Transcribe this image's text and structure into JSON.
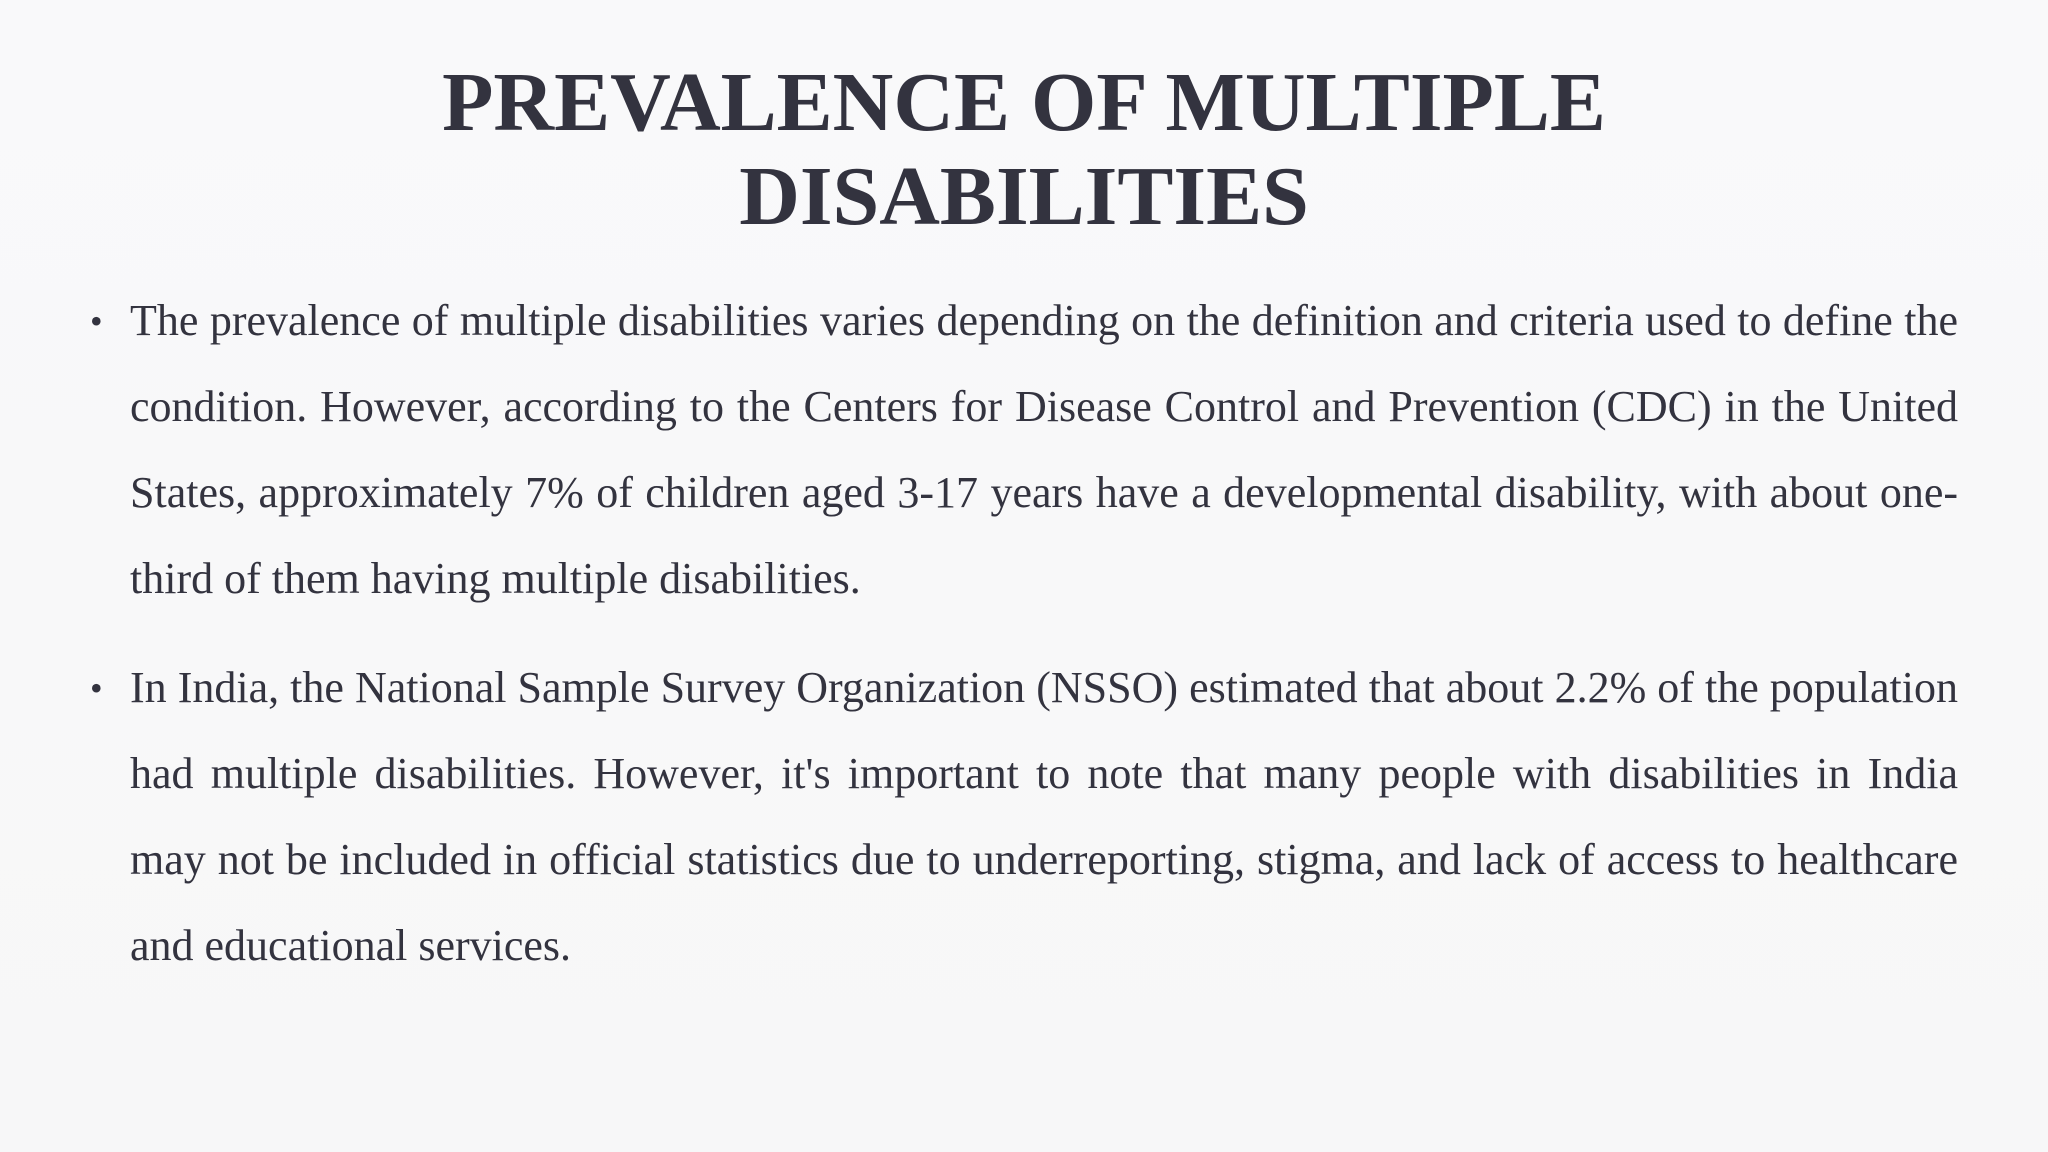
{
  "slide": {
    "title_line1": "PREVALENCE OF MULTIPLE",
    "title_line2": "DISABILITIES",
    "bullets": [
      {
        "symbol": "•",
        "text": "The prevalence of multiple disabilities varies depending on the definition and criteria used to define the condition. However, according to the Centers for Disease Control and Prevention (CDC) in the United States, approximately 7% of children aged 3-17 years have a developmental disability, with about one-third of them having multiple disabilities."
      },
      {
        "symbol": "•",
        "text": "In India, the National Sample Survey Organization (NSSO) estimated that about 2.2% of the population had multiple disabilities. However, it's important to note that many people with disabilities in India may not be included in official statistics due to underreporting, stigma, and lack of access to healthcare and educational services."
      }
    ]
  }
}
